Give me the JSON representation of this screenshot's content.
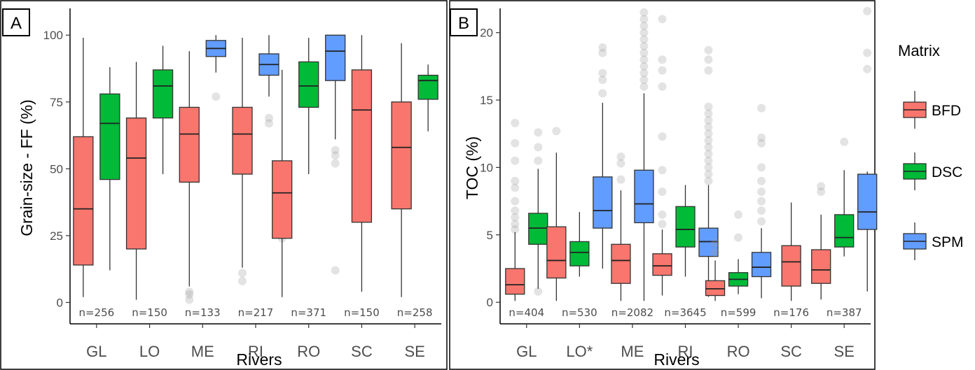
{
  "legend": {
    "title": "Matrix",
    "items": [
      {
        "name": "BFD",
        "color": "#F8766D"
      },
      {
        "name": "DSC",
        "color": "#00BA38"
      },
      {
        "name": "SPM",
        "color": "#619CFF"
      }
    ]
  },
  "chart_data": [
    {
      "type": "box",
      "panel_label": "A",
      "ylabel": "Grain-size - FF (%)",
      "xlabel": "Rivers",
      "ylim": [
        -8,
        110
      ],
      "yticks": [
        0,
        25,
        50,
        75,
        100
      ],
      "categories": [
        "GL",
        "LO",
        "ME",
        "RI",
        "RO",
        "SC",
        "SE"
      ],
      "n_labels": [
        "n=256",
        "n=150",
        "n=133",
        "n=217",
        "n=371",
        "n=150",
        "n=258"
      ],
      "boxes": [
        {
          "category": "GL",
          "series": "BFD",
          "lo": 2,
          "q1": 14,
          "median": 35,
          "q3": 62,
          "hi": 99,
          "outliers": []
        },
        {
          "category": "GL",
          "series": "DSC",
          "lo": 12,
          "q1": 46,
          "median": 67,
          "q3": 78,
          "hi": 88,
          "outliers": []
        },
        {
          "category": "LO",
          "series": "BFD",
          "lo": 1,
          "q1": 20,
          "median": 54,
          "q3": 69,
          "hi": 90,
          "outliers": []
        },
        {
          "category": "LO",
          "series": "DSC",
          "lo": 48,
          "q1": 69,
          "median": 81,
          "q3": 87,
          "hi": 96,
          "outliers": []
        },
        {
          "category": "ME",
          "series": "BFD",
          "lo": 6,
          "q1": 45,
          "median": 63,
          "q3": 73,
          "hi": 94,
          "outliers": [
            1,
            3,
            4
          ]
        },
        {
          "category": "ME",
          "series": "SPM",
          "lo": 86,
          "q1": 92,
          "median": 95,
          "q3": 98,
          "hi": 100,
          "outliers": [
            77
          ]
        },
        {
          "category": "RI",
          "series": "BFD",
          "lo": 13,
          "q1": 48,
          "median": 63,
          "q3": 73,
          "hi": 99,
          "outliers": [
            8,
            11
          ]
        },
        {
          "category": "RI",
          "series": "SPM",
          "lo": 77,
          "q1": 85,
          "median": 89,
          "q3": 93,
          "hi": 100,
          "outliers": [
            67,
            69
          ]
        },
        {
          "category": "RO",
          "series": "BFD",
          "lo": 2,
          "q1": 24,
          "median": 41,
          "q3": 53,
          "hi": 87,
          "outliers": [
            24,
            30,
            35,
            41,
            44,
            47
          ]
        },
        {
          "category": "RO",
          "series": "DSC",
          "lo": 48,
          "q1": 73,
          "median": 81,
          "q3": 90,
          "hi": 99,
          "outliers": []
        },
        {
          "category": "RO",
          "series": "SPM",
          "lo": 61,
          "q1": 83,
          "median": 94,
          "q3": 100,
          "hi": 100,
          "outliers": [
            12,
            52,
            55,
            57
          ]
        },
        {
          "category": "SC",
          "series": "BFD",
          "lo": 4,
          "q1": 30,
          "median": 72,
          "q3": 87,
          "hi": 100,
          "outliers": []
        },
        {
          "category": "SE",
          "series": "BFD",
          "lo": 2,
          "q1": 35,
          "median": 58,
          "q3": 75,
          "hi": 97,
          "outliers": []
        },
        {
          "category": "SE",
          "series": "DSC",
          "lo": 64,
          "q1": 76,
          "median": 83,
          "q3": 85,
          "hi": 89,
          "outliers": []
        }
      ]
    },
    {
      "type": "box",
      "panel_label": "B",
      "ylabel": "TOC (%)",
      "xlabel": "Rivers",
      "ylim": [
        -1.6,
        21.8
      ],
      "yticks": [
        0,
        5,
        10,
        15,
        20
      ],
      "categories": [
        "GL",
        "LO*",
        "ME",
        "RI",
        "RO",
        "SC",
        "SE"
      ],
      "n_labels": [
        "n=404",
        "n=530",
        "n=2082",
        "n=3645",
        "n=599",
        "n=176",
        "n=387"
      ],
      "boxes": [
        {
          "category": "GL",
          "series": "BFD",
          "lo": 0.1,
          "q1": 0.6,
          "median": 1.3,
          "q3": 2.5,
          "hi": 5.2,
          "outliers": [
            5.4,
            5.8,
            6.3,
            6.8,
            7.5,
            8.5,
            9.0,
            10.5,
            11.8,
            13.3
          ]
        },
        {
          "category": "GL",
          "series": "DSC",
          "lo": 1.0,
          "q1": 4.3,
          "median": 5.5,
          "q3": 6.6,
          "hi": 9.9,
          "outliers": [
            0.8,
            10.5,
            11.5,
            12.6
          ]
        },
        {
          "category": "LO*",
          "series": "BFD",
          "lo": 0.1,
          "q1": 1.8,
          "median": 3.1,
          "q3": 5.6,
          "hi": 11.1,
          "outliers": [
            12.7
          ]
        },
        {
          "category": "LO*",
          "series": "DSC",
          "lo": 1.9,
          "q1": 2.7,
          "median": 3.7,
          "q3": 4.5,
          "hi": 6.7,
          "outliers": []
        },
        {
          "category": "LO*",
          "series": "SPM",
          "lo": 2.5,
          "q1": 5.5,
          "median": 6.8,
          "q3": 9.3,
          "hi": 14.8,
          "outliers": [
            15.5,
            16.5,
            17.0,
            18.5,
            18.9
          ]
        },
        {
          "category": "ME",
          "series": "BFD",
          "lo": 0.1,
          "q1": 1.4,
          "median": 3.1,
          "q3": 4.3,
          "hi": 8.3,
          "outliers": [
            9.1,
            10.3,
            10.8
          ]
        },
        {
          "category": "ME",
          "series": "SPM",
          "lo": 0.1,
          "q1": 5.9,
          "median": 7.3,
          "q3": 9.8,
          "hi": 15.5,
          "outliers": [
            16.0,
            16.5,
            17.0,
            17.5,
            18.0,
            18.5,
            19.0,
            19.5,
            20.0,
            20.5,
            21.0,
            21.5
          ]
        },
        {
          "category": "RI",
          "series": "BFD",
          "lo": 0.5,
          "q1": 2.0,
          "median": 2.7,
          "q3": 3.6,
          "hi": 5.4,
          "outliers": [
            5.8,
            6.5,
            8.2,
            9.8,
            12.3,
            16.0,
            17.2,
            18.0,
            21.0
          ]
        },
        {
          "category": "RI",
          "series": "DSC",
          "lo": 1.9,
          "q1": 4.1,
          "median": 5.4,
          "q3": 7.1,
          "hi": 8.7,
          "outliers": []
        },
        {
          "category": "RI",
          "series": "SPM",
          "lo": 0.4,
          "q1": 3.4,
          "median": 4.5,
          "q3": 5.5,
          "hi": 8.7,
          "outliers": [
            9.0,
            9.5,
            10.0,
            10.5,
            11.0,
            11.5,
            12.0,
            12.5,
            13.0,
            13.5,
            14.0,
            14.5,
            17.2,
            18.0,
            18.7
          ]
        },
        {
          "category": "RO",
          "series": "BFD",
          "lo": 0.1,
          "q1": 0.5,
          "median": 1.0,
          "q3": 1.6,
          "hi": 3.1,
          "outliers": [
            3.7,
            4.4
          ]
        },
        {
          "category": "RO",
          "series": "DSC",
          "lo": 0.6,
          "q1": 1.2,
          "median": 1.7,
          "q3": 2.2,
          "hi": 3.2,
          "outliers": [
            4.8,
            6.5
          ]
        },
        {
          "category": "RO",
          "series": "SPM",
          "lo": 0.3,
          "q1": 1.9,
          "median": 2.6,
          "q3": 3.7,
          "hi": 5.5,
          "outliers": [
            6.0,
            6.8,
            7.5,
            8.2,
            9.0,
            10.0,
            11.8,
            12.2,
            14.4
          ]
        },
        {
          "category": "SC",
          "series": "BFD",
          "lo": 0.1,
          "q1": 1.2,
          "median": 3.0,
          "q3": 4.2,
          "hi": 7.4,
          "outliers": []
        },
        {
          "category": "SE",
          "series": "BFD",
          "lo": 0.2,
          "q1": 1.4,
          "median": 2.4,
          "q3": 3.9,
          "hi": 6.5,
          "outliers": [
            8.2,
            8.6
          ]
        },
        {
          "category": "SE",
          "series": "DSC",
          "lo": 3.4,
          "q1": 4.1,
          "median": 4.8,
          "q3": 6.5,
          "hi": 9.8,
          "outliers": [
            11.9
          ]
        },
        {
          "category": "SE",
          "series": "SPM",
          "lo": 0.8,
          "q1": 5.4,
          "median": 6.7,
          "q3": 9.5,
          "hi": 9.7,
          "outliers": [
            17.3,
            18.5,
            21.6
          ]
        }
      ]
    }
  ]
}
